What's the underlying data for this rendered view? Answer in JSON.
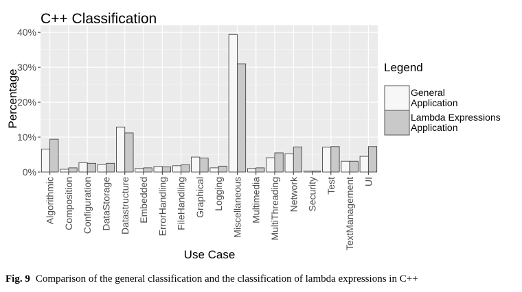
{
  "chart_data": {
    "type": "bar",
    "title": "C++ Classification",
    "xlabel": "Use Case",
    "ylabel": "Percentage",
    "ylim": [
      0,
      42
    ],
    "yticks": [
      "0%",
      "10%",
      "20%",
      "30%",
      "40%"
    ],
    "ytick_values": [
      0,
      10,
      20,
      30,
      40
    ],
    "grid": true,
    "legend_position": "right",
    "legend_title": "Legend",
    "categories": [
      "Algorithmic",
      "Composition",
      "Configuration",
      "DataStorage",
      "Datastructure",
      "Embedded",
      "ErrorHandling",
      "FileHandling",
      "Graphical",
      "Logging",
      "Miscellaneous",
      "Multimedia",
      "MultiThreading",
      "Network",
      "Security",
      "Test",
      "TextManagement",
      "UI"
    ],
    "series": [
      {
        "name": "General Application",
        "name_lines": [
          "General",
          "Application"
        ],
        "color": "#f7f7f7",
        "values": [
          6.6,
          0.8,
          2.7,
          2.2,
          12.9,
          1.0,
          1.6,
          1.8,
          4.3,
          1.2,
          39.4,
          1.0,
          4.1,
          5.2,
          0.3,
          7.1,
          3.1,
          4.5
        ]
      },
      {
        "name": "Lambda Expressions Application",
        "name_lines": [
          "Lambda Expressions",
          "Application"
        ],
        "color": "#c9c9c9",
        "values": [
          9.4,
          1.2,
          2.5,
          2.5,
          11.2,
          1.2,
          1.5,
          2.1,
          4.0,
          1.7,
          31.0,
          1.2,
          5.5,
          7.2,
          0.3,
          7.3,
          3.1,
          7.3
        ]
      }
    ]
  },
  "caption": {
    "label": "Fig. 9",
    "text": "Comparison of the general classification and the classification of lambda expressions in C++"
  }
}
